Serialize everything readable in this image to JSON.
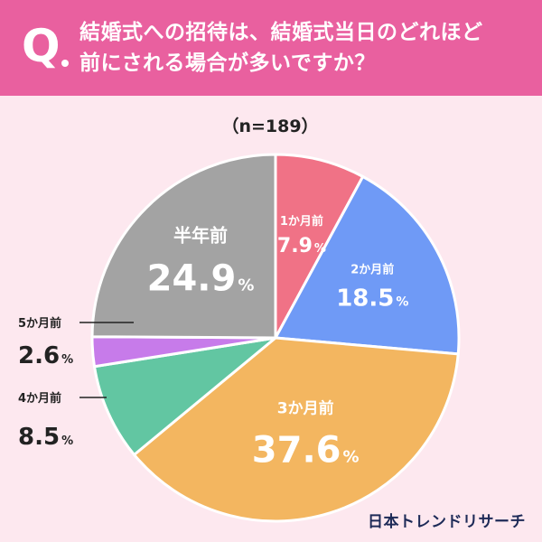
{
  "header": {
    "q_label": "Q",
    "question_line1": "結婚式への招待は、結婚式当日のどれほど",
    "question_line2": "前にされる場合が多いですか？"
  },
  "colors": {
    "header_bg": "#e9609f",
    "page_bg": "#fde8ef"
  },
  "brand": "日本トレンドリサーチ",
  "chart_data": {
    "type": "pie",
    "n_label": "（n=189）",
    "slices": [
      {
        "label": "1か月前",
        "value": 7.9,
        "display": "7.9",
        "unit": "%",
        "color": "#f07286",
        "label_placement": "inside"
      },
      {
        "label": "2か月前",
        "value": 18.5,
        "display": "18.5",
        "unit": "%",
        "color": "#6f9af6",
        "label_placement": "inside"
      },
      {
        "label": "3か月前",
        "value": 37.6,
        "display": "37.6",
        "unit": "%",
        "color": "#f3b660",
        "label_placement": "inside"
      },
      {
        "label": "4か月前",
        "value": 8.5,
        "display": "8.5",
        "unit": "%",
        "color": "#62c6a2",
        "label_placement": "outside"
      },
      {
        "label": "5か月前",
        "value": 2.6,
        "display": "2.6",
        "unit": "%",
        "color": "#c77bea",
        "label_placement": "outside"
      },
      {
        "label": "半年前",
        "value": 24.9,
        "display": "24.9",
        "unit": "%",
        "color": "#a3a3a3",
        "label_placement": "inside"
      }
    ]
  }
}
